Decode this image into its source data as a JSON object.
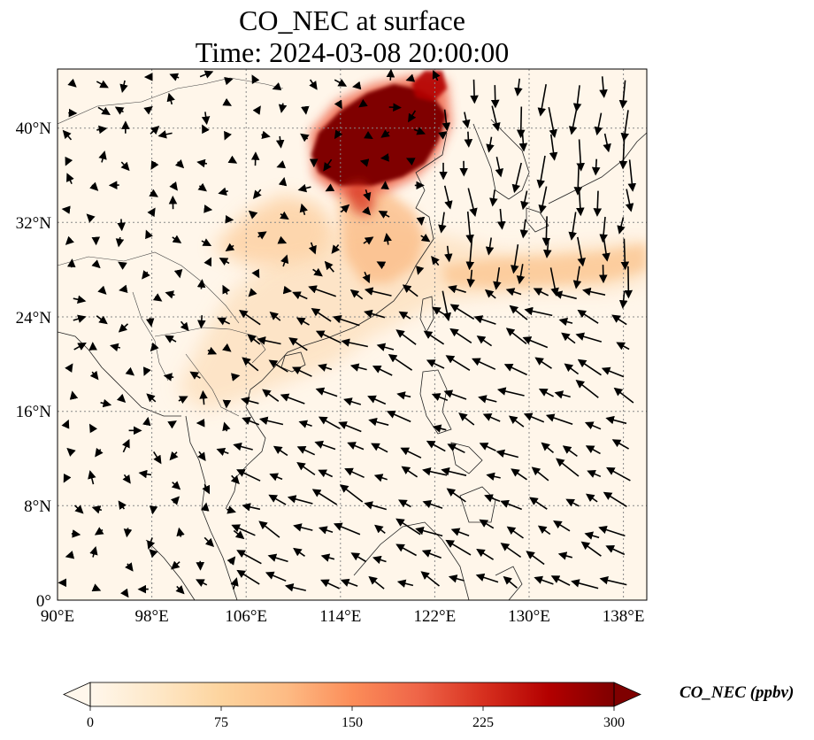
{
  "title": {
    "line1": "CO_NEC at surface",
    "line2": "Time: 2024-03-08 20:00:00"
  },
  "map": {
    "projection": "PlateCarree",
    "lon_range": [
      90,
      140
    ],
    "lat_range": [
      0,
      45
    ],
    "gridlines": "dotted",
    "x_ticks": [
      "90°E",
      "98°E",
      "106°E",
      "114°E",
      "122°E",
      "130°E",
      "138°E"
    ],
    "y_ticks": [
      "0°",
      "8°N",
      "16°N",
      "24°N",
      "32°N",
      "40°N"
    ],
    "field": "CO_NEC concentration, highest over North China Plain (~114–120°E, 35–44°N), plume extending along Yangtze region and east over the East China Sea",
    "wind_vectors": "northeasterly flow over South China Sea and western Pacific"
  },
  "colorbar": {
    "label": "CO_NEC (ppbv)",
    "ticks": [
      "0",
      "75",
      "150",
      "225",
      "300"
    ],
    "range": [
      0,
      300
    ],
    "extend": "both",
    "colormap": "OrRd",
    "colors": [
      "#fff7ec",
      "#fee8c8",
      "#fdd49e",
      "#fdbb84",
      "#fc8d59",
      "#ef6548",
      "#d7301f",
      "#b30000",
      "#7f0000"
    ]
  }
}
